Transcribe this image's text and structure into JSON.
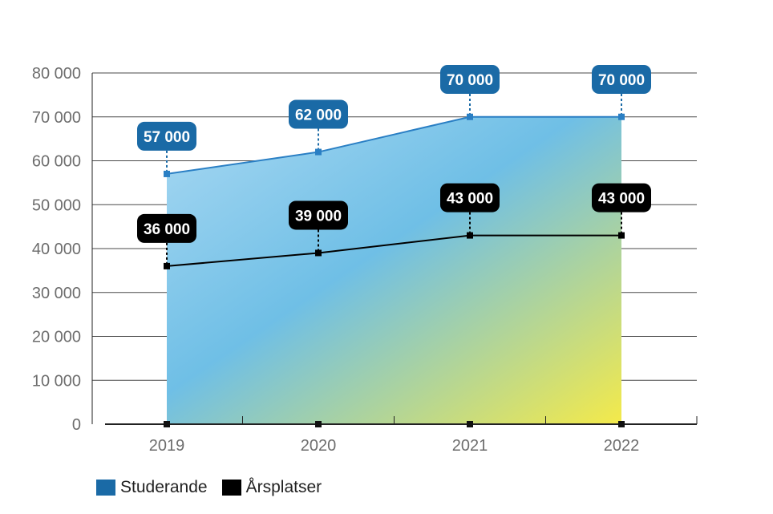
{
  "colors": {
    "studerande": "#1a6aa6",
    "studerande_line": "#2a7fc4",
    "arsplatser": "#000000",
    "grid": "#4a4a4a",
    "fill_top": "#a8d8f2",
    "fill_mid": "#6fbfe6",
    "fill_bottom": "#f4ea4a"
  },
  "chart_data": {
    "type": "area",
    "x": [
      "2019",
      "2020",
      "2021",
      "2022"
    ],
    "ylim": [
      0,
      80000
    ],
    "yticks": [
      0,
      10000,
      20000,
      30000,
      40000,
      50000,
      60000,
      70000,
      80000
    ],
    "ytick_labels": [
      "0",
      "10 000",
      "20 000",
      "30 000",
      "40 000",
      "50 000",
      "60 000",
      "70 000",
      "80 000"
    ],
    "grid": true,
    "legend_position": "bottom-left",
    "series": [
      {
        "name": "Studerande",
        "values": [
          57000,
          62000,
          70000,
          70000
        ],
        "labels": [
          "57 000",
          "62 000",
          "70 000",
          "70 000"
        ]
      },
      {
        "name": "Årsplatser",
        "values": [
          36000,
          39000,
          43000,
          43000
        ],
        "labels": [
          "36 000",
          "39 000",
          "43 000",
          "43 000"
        ]
      }
    ]
  }
}
